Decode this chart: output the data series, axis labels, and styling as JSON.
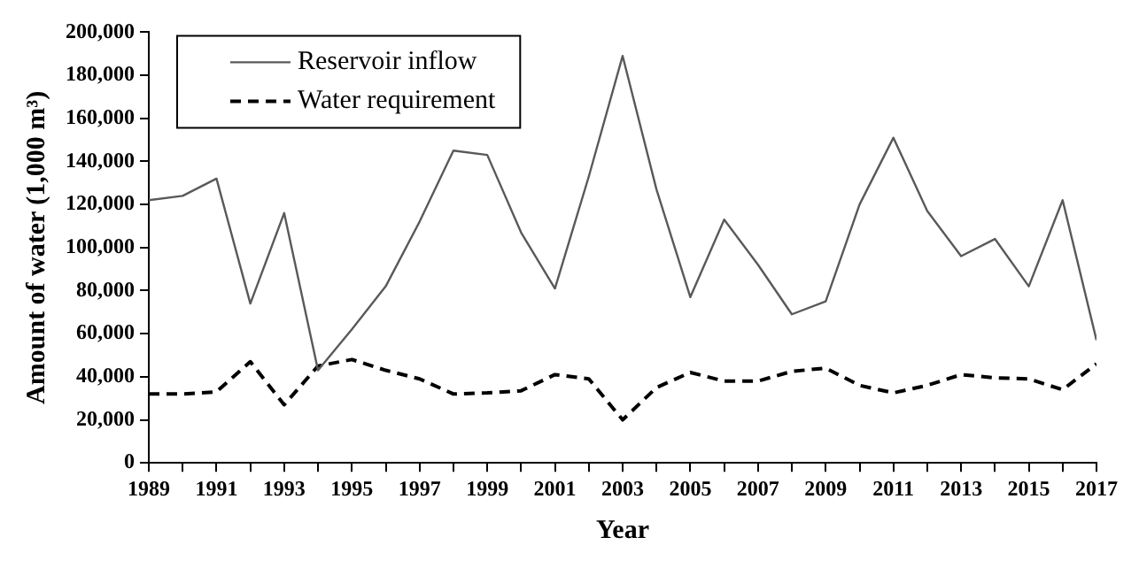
{
  "chart_data": {
    "type": "line",
    "xlabel": "Year",
    "ylabel": "Amount of water (1,000 m³)",
    "x": [
      1989,
      1990,
      1991,
      1992,
      1993,
      1994,
      1995,
      1996,
      1997,
      1998,
      1999,
      2000,
      2001,
      2002,
      2003,
      2004,
      2005,
      2006,
      2007,
      2008,
      2009,
      2010,
      2011,
      2012,
      2013,
      2014,
      2015,
      2016,
      2017
    ],
    "series": [
      {
        "name": "Reservoir inflow",
        "color": "#595959",
        "line_style": "solid",
        "values": [
          122000,
          124000,
          132000,
          74000,
          116000,
          43000,
          62000,
          82000,
          112000,
          145000,
          143000,
          107000,
          81000,
          133000,
          189000,
          127000,
          77000,
          113000,
          92000,
          69000,
          75000,
          120000,
          151000,
          117000,
          96000,
          104000,
          82000,
          122000,
          57000
        ]
      },
      {
        "name": "Water requirement",
        "color": "#000000",
        "line_style": "dashed",
        "values": [
          32000,
          32000,
          33000,
          47000,
          27000,
          45000,
          48000,
          43000,
          39000,
          32000,
          32500,
          33500,
          41000,
          39000,
          20000,
          35000,
          42000,
          38000,
          38000,
          42500,
          44000,
          36000,
          32500,
          36000,
          41000,
          39500,
          39000,
          34000,
          46000
        ]
      }
    ],
    "xlim": [
      1989,
      2017
    ],
    "xticks": [
      1989,
      {
        "value": 1990,
        "label": null
      },
      1991,
      {
        "value": 1992,
        "label": null
      },
      1993,
      {
        "value": 1994,
        "label": null
      },
      1995,
      {
        "value": 1996,
        "label": null
      },
      1997,
      {
        "value": 1998,
        "label": null
      },
      1999,
      {
        "value": 2000,
        "label": null
      },
      2001,
      {
        "value": 2002,
        "label": null
      },
      2003,
      {
        "value": 2004,
        "label": null
      },
      2005,
      {
        "value": 2006,
        "label": null
      },
      2007,
      {
        "value": 2008,
        "label": null
      },
      2009,
      {
        "value": 2010,
        "label": null
      },
      2011,
      {
        "value": 2012,
        "label": null
      },
      2013,
      {
        "value": 2014,
        "label": null
      },
      2015,
      {
        "value": 2016,
        "label": null
      },
      2017
    ],
    "ylim": [
      0,
      200000
    ],
    "yticks": [
      {
        "value": 0,
        "label": "0"
      },
      {
        "value": 20000,
        "label": "20,000"
      },
      {
        "value": 40000,
        "label": "40,000"
      },
      {
        "value": 60000,
        "label": "60,000"
      },
      {
        "value": 80000,
        "label": "80,000"
      },
      {
        "value": 100000,
        "label": "100,000"
      },
      {
        "value": 120000,
        "label": "120,000"
      },
      {
        "value": 140000,
        "label": "140,000"
      },
      {
        "value": 160000,
        "label": "160,000"
      },
      {
        "value": 180000,
        "label": "180,000"
      },
      {
        "value": 200000,
        "label": "200,000"
      }
    ],
    "grid": false,
    "legend": "top left",
    "marker": "none"
  }
}
